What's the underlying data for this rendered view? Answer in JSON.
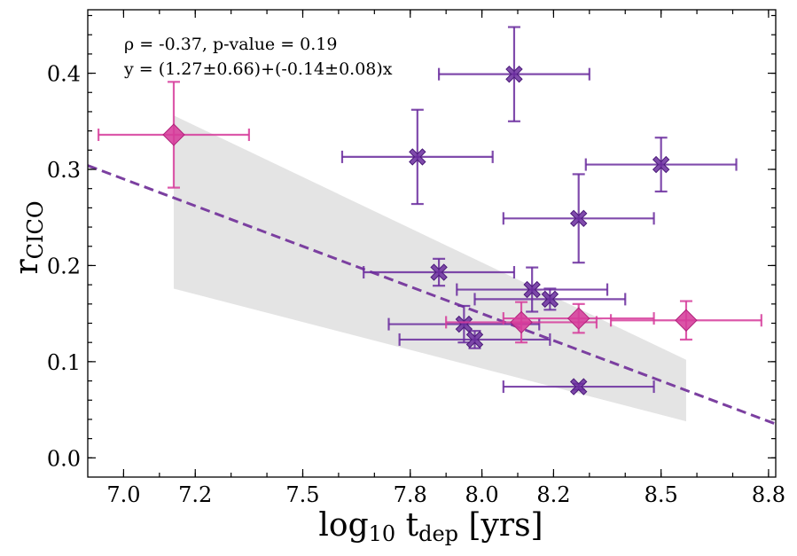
{
  "chart_data": {
    "type": "scatter",
    "title": "",
    "xlabel": "log10 t_dep [yrs]",
    "xlabel_base": "log",
    "xlabel_sub": "10",
    "xlabel_main": " t",
    "xlabel_sub2": "dep",
    "xlabel_tail": " [yrs]",
    "ylabel": "r_CICO",
    "ylabel_base": "r",
    "ylabel_sub": "CICO",
    "xlim": [
      6.9,
      8.82
    ],
    "ylim": [
      -0.02,
      0.466
    ],
    "xticks": [
      7.0,
      7.2,
      7.5,
      7.8,
      8.0,
      8.2,
      8.5,
      8.8
    ],
    "xtick_labels": [
      "7.0",
      "7.2",
      "7.5",
      "7.8",
      "8.0",
      "8.2",
      "8.5",
      "8.8"
    ],
    "yticks": [
      0.0,
      0.1,
      0.2,
      0.3,
      0.4
    ],
    "ytick_labels": [
      "0.0",
      "0.1",
      "0.2",
      "0.3",
      "0.4"
    ],
    "annotations": [
      "ρ = -0.37, p-value = 0.19",
      "y = (1.27±0.66)+(-0.14±0.08)x"
    ],
    "fit": {
      "intercept": 1.27,
      "slope": -0.14,
      "color": "#7b3fa0"
    },
    "confidence_band": {
      "x": [
        7.14,
        8.57
      ],
      "upper": [
        0.356,
        0.102
      ],
      "lower": [
        0.176,
        0.038
      ],
      "color": "#e4e4e4"
    },
    "series": [
      {
        "name": "cross",
        "marker": "X",
        "color": "#6a2c9e",
        "points": [
          {
            "x": 8.09,
            "y": 0.399,
            "xerr": 0.21,
            "yerr": 0.049
          },
          {
            "x": 7.82,
            "y": 0.313,
            "xerr": 0.21,
            "yerr": 0.049
          },
          {
            "x": 8.5,
            "y": 0.305,
            "xerr": 0.21,
            "yerr": 0.028
          },
          {
            "x": 8.27,
            "y": 0.249,
            "xerr": 0.21,
            "yerr": 0.046
          },
          {
            "x": 7.88,
            "y": 0.193,
            "xerr": 0.21,
            "yerr": 0.014
          },
          {
            "x": 8.14,
            "y": 0.175,
            "xerr": 0.21,
            "yerr": 0.023
          },
          {
            "x": 8.19,
            "y": 0.165,
            "xerr": 0.21,
            "yerr": 0.011
          },
          {
            "x": 7.95,
            "y": 0.139,
            "xerr": 0.21,
            "yerr": 0.019
          },
          {
            "x": 7.98,
            "y": 0.123,
            "xerr": 0.21,
            "yerr": 0.009
          },
          {
            "x": 8.27,
            "y": 0.074,
            "xerr": 0.21,
            "yerr": 0.003
          }
        ]
      },
      {
        "name": "diamond",
        "marker": "D",
        "color": "#d63c9b",
        "points": [
          {
            "x": 7.14,
            "y": 0.336,
            "xerr": 0.21,
            "yerr": 0.055
          },
          {
            "x": 8.11,
            "y": 0.141,
            "xerr": 0.21,
            "yerr": 0.021
          },
          {
            "x": 8.27,
            "y": 0.145,
            "xerr": 0.21,
            "yerr": 0.015
          },
          {
            "x": 8.57,
            "y": 0.143,
            "xerr": 0.21,
            "yerr": 0.02
          }
        ]
      }
    ]
  }
}
